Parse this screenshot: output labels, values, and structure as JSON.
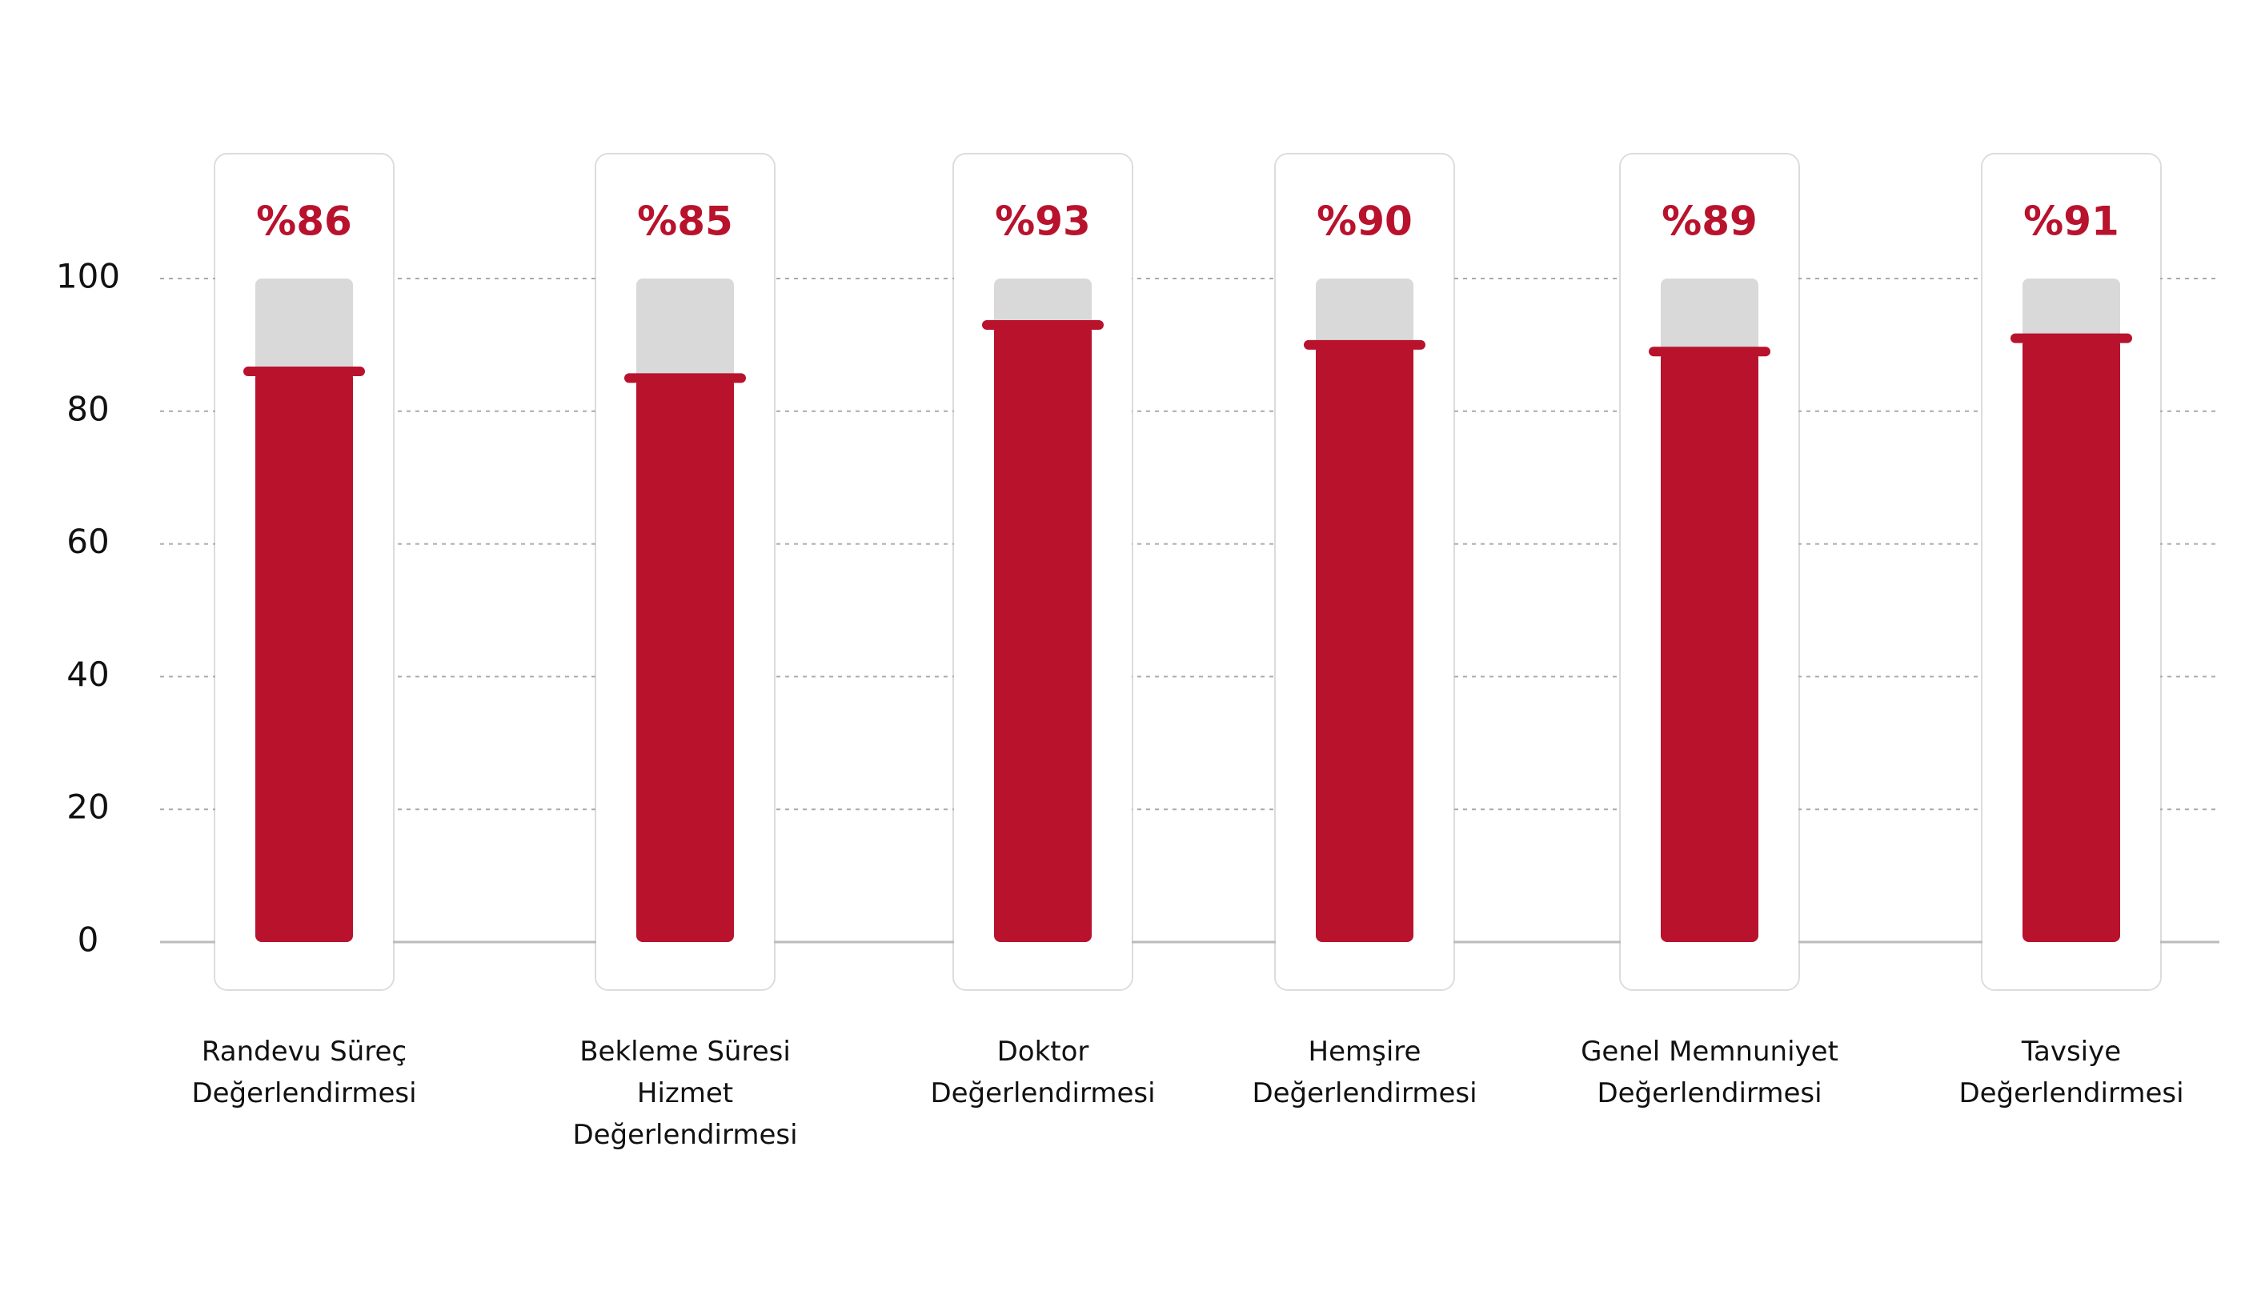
{
  "chart_data": {
    "type": "bar",
    "categories": [
      "Randevu Süreç Değerlendirmesi",
      "Bekleme Süresi Hizmet Değerlendirmesi",
      "Doktor Değerlendirmesi",
      "Hemşire Değerlendirmesi",
      "Genel Memnuniyet Değerlendirmesi",
      "Tavsiye Değerlendirmesi"
    ],
    "values": [
      86,
      85,
      93,
      90,
      89,
      91
    ],
    "value_labels": [
      "%86",
      "%85",
      "%93",
      "%90",
      "%89",
      "%91"
    ],
    "color": "#b8122d",
    "ylim": [
      0,
      100
    ],
    "yticks": [
      0,
      20,
      40,
      60,
      80,
      100
    ],
    "grid": true
  }
}
